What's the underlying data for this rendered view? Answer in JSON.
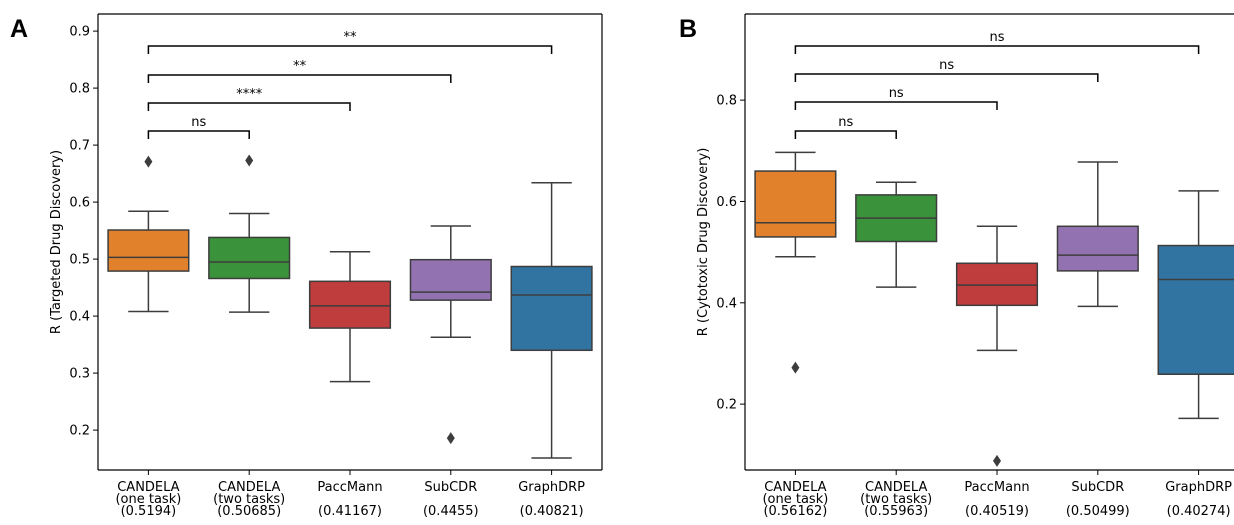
{
  "chart_data": [
    {
      "panel": "A",
      "type": "box",
      "ylabel": "R (Targeted Drug Discovery)",
      "ylim": [
        0.13,
        0.93
      ],
      "yticks": [
        "0.2",
        "0.3",
        "0.4",
        "0.5",
        "0.6",
        "0.7",
        "0.8",
        "0.9"
      ],
      "categories": [
        {
          "lines": [
            "CANDELA",
            "(one task)",
            "(0.5194)"
          ],
          "color": "#E1812C",
          "whislo": 0.408,
          "q1": 0.479,
          "med": 0.503,
          "q3": 0.551,
          "whishi": 0.584,
          "fliers": [
            0.671
          ]
        },
        {
          "lines": [
            "CANDELA",
            "(two tasks)",
            "(0.50685)"
          ],
          "color": "#3A923A",
          "whislo": 0.407,
          "q1": 0.466,
          "med": 0.495,
          "q3": 0.538,
          "whishi": 0.58,
          "fliers": [
            0.673
          ]
        },
        {
          "lines": [
            "PaccMann",
            "",
            "(0.41167)"
          ],
          "color": "#C03D3E",
          "whislo": 0.285,
          "q1": 0.379,
          "med": 0.418,
          "q3": 0.461,
          "whishi": 0.513,
          "fliers": []
        },
        {
          "lines": [
            "SubCDR",
            "",
            "(0.4455)"
          ],
          "color": "#9372B2",
          "whislo": 0.363,
          "q1": 0.428,
          "med": 0.442,
          "q3": 0.499,
          "whishi": 0.558,
          "fliers": [
            0.186
          ]
        },
        {
          "lines": [
            "GraphDRP",
            "",
            "(0.40821)"
          ],
          "color": "#3274A1",
          "whislo": 0.151,
          "q1": 0.34,
          "med": 0.437,
          "q3": 0.487,
          "whishi": 0.634,
          "fliers": []
        }
      ],
      "annotations": [
        {
          "from": 0,
          "to": 1,
          "label": "ns",
          "level": 0
        },
        {
          "from": 0,
          "to": 2,
          "label": "****",
          "level": 1
        },
        {
          "from": 0,
          "to": 3,
          "label": "**",
          "level": 2
        },
        {
          "from": 0,
          "to": 4,
          "label": "**",
          "level": 3
        }
      ]
    },
    {
      "panel": "B",
      "type": "box",
      "ylabel": "R (Cytotoxic Drug Discovery)",
      "ylim": [
        0.07,
        0.97
      ],
      "yticks": [
        "0.2",
        "0.4",
        "0.6",
        "0.8"
      ],
      "categories": [
        {
          "lines": [
            "CANDELA",
            "(one task)",
            "(0.56162)"
          ],
          "color": "#E1812C",
          "whislo": 0.491,
          "q1": 0.53,
          "med": 0.558,
          "q3": 0.66,
          "whishi": 0.697,
          "fliers": [
            0.272
          ]
        },
        {
          "lines": [
            "CANDELA",
            "(two tasks)",
            "(0.55963)"
          ],
          "color": "#3A923A",
          "whislo": 0.431,
          "q1": 0.521,
          "med": 0.567,
          "q3": 0.613,
          "whishi": 0.638,
          "fliers": []
        },
        {
          "lines": [
            "PaccMann",
            "",
            "(0.40519)"
          ],
          "color": "#C03D3E",
          "whislo": 0.306,
          "q1": 0.395,
          "med": 0.435,
          "q3": 0.478,
          "whishi": 0.551,
          "fliers": [
            0.088
          ]
        },
        {
          "lines": [
            "SubCDR",
            "",
            "(0.50499)"
          ],
          "color": "#9372B2",
          "whislo": 0.393,
          "q1": 0.463,
          "med": 0.494,
          "q3": 0.551,
          "whishi": 0.678,
          "fliers": []
        },
        {
          "lines": [
            "GraphDRP",
            "",
            "(0.40274)"
          ],
          "color": "#3274A1",
          "whislo": 0.172,
          "q1": 0.259,
          "med": 0.446,
          "q3": 0.513,
          "whishi": 0.621,
          "fliers": []
        }
      ],
      "annotations": [
        {
          "from": 0,
          "to": 1,
          "label": "ns",
          "level": 0
        },
        {
          "from": 0,
          "to": 2,
          "label": "ns",
          "level": 1
        },
        {
          "from": 0,
          "to": 3,
          "label": "ns",
          "level": 2
        },
        {
          "from": 0,
          "to": 4,
          "label": "ns",
          "level": 3
        }
      ]
    }
  ]
}
